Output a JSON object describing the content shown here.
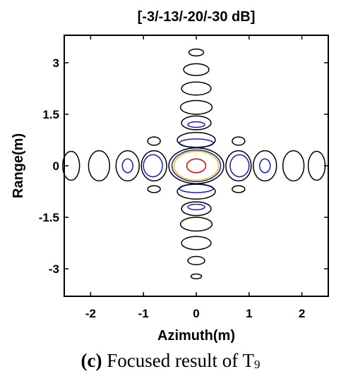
{
  "chart_data": {
    "type": "contour",
    "title": "[-3/-13/-20/-30 dB]",
    "xlabel": "Azimuth(m)",
    "ylabel": "Range(m)",
    "xlim": [
      -2.5,
      2.5
    ],
    "ylim": [
      -3.8,
      3.8
    ],
    "xticks": [
      -2,
      -1,
      0,
      1,
      2
    ],
    "xtick_labels": [
      "-2",
      "-1",
      "0",
      "1",
      "2"
    ],
    "yticks": [
      3,
      1.5,
      0,
      -1.5,
      -3
    ],
    "ytick_labels": [
      "3",
      "1.5",
      "0",
      "-1.5",
      "-3"
    ],
    "grid": false,
    "levels": [
      {
        "name": "-3 dB",
        "color": "#e00000"
      },
      {
        "name": "-13 dB",
        "color": "#e8c800"
      },
      {
        "name": "-20 dB",
        "color": "#1a1acc"
      },
      {
        "name": "-30 dB",
        "color": "#000000"
      }
    ],
    "contours": [
      {
        "level": "-3 dB",
        "cx": 0,
        "cy": 0,
        "rx": 0.18,
        "ry": 0.2
      },
      {
        "level": "-13 dB",
        "cx": 0,
        "cy": 0,
        "rx": 0.42,
        "ry": 0.42
      },
      {
        "level": "-20 dB",
        "cx": 0,
        "cy": 0,
        "rx": 0.46,
        "ry": 0.46
      },
      {
        "level": "-30 dB",
        "cx": 0,
        "cy": 0,
        "rx": 0.52,
        "ry": 0.52
      },
      {
        "level": "-20 dB",
        "cx": 0.82,
        "cy": 0,
        "rx": 0.18,
        "ry": 0.32
      },
      {
        "level": "-20 dB",
        "cx": -0.82,
        "cy": 0,
        "rx": 0.18,
        "ry": 0.32
      },
      {
        "level": "-20 dB",
        "cx": 1.3,
        "cy": 0,
        "rx": 0.1,
        "ry": 0.2
      },
      {
        "level": "-20 dB",
        "cx": -1.3,
        "cy": 0,
        "rx": 0.1,
        "ry": 0.2
      },
      {
        "level": "-20 dB",
        "cx": 0,
        "cy": 0.66,
        "rx": 0.32,
        "ry": 0.12
      },
      {
        "level": "-20 dB",
        "cx": 0,
        "cy": -0.66,
        "rx": 0.32,
        "ry": 0.12
      },
      {
        "level": "-20 dB",
        "cx": 0,
        "cy": 1.2,
        "rx": 0.16,
        "ry": 0.08
      },
      {
        "level": "-20 dB",
        "cx": 0,
        "cy": -1.2,
        "rx": 0.16,
        "ry": 0.08
      },
      {
        "level": "-30 dB",
        "cx": 0.8,
        "cy": 0,
        "rx": 0.24,
        "ry": 0.44
      },
      {
        "level": "-30 dB",
        "cx": -0.8,
        "cy": 0,
        "rx": 0.24,
        "ry": 0.44
      },
      {
        "level": "-30 dB",
        "cx": 1.3,
        "cy": 0,
        "rx": 0.22,
        "ry": 0.44
      },
      {
        "level": "-30 dB",
        "cx": -1.3,
        "cy": 0,
        "rx": 0.22,
        "ry": 0.44
      },
      {
        "level": "-30 dB",
        "cx": 1.84,
        "cy": 0,
        "rx": 0.2,
        "ry": 0.44
      },
      {
        "level": "-30 dB",
        "cx": -1.84,
        "cy": 0,
        "rx": 0.2,
        "ry": 0.44
      },
      {
        "level": "-30 dB",
        "cx": 2.28,
        "cy": 0,
        "rx": 0.16,
        "ry": 0.42
      },
      {
        "level": "-30 dB",
        "cx": -2.37,
        "cy": 0,
        "rx": 0.16,
        "ry": 0.42
      },
      {
        "level": "-30 dB",
        "cx": 0,
        "cy": 0.75,
        "rx": 0.36,
        "ry": 0.22
      },
      {
        "level": "-30 dB",
        "cx": 0,
        "cy": -0.75,
        "rx": 0.36,
        "ry": 0.22
      },
      {
        "level": "-30 dB",
        "cx": 0,
        "cy": 1.25,
        "rx": 0.28,
        "ry": 0.2
      },
      {
        "level": "-30 dB",
        "cx": 0,
        "cy": -1.25,
        "rx": 0.28,
        "ry": 0.2
      },
      {
        "level": "-30 dB",
        "cx": 0,
        "cy": 1.7,
        "rx": 0.3,
        "ry": 0.2
      },
      {
        "level": "-30 dB",
        "cx": 0,
        "cy": -1.7,
        "rx": 0.3,
        "ry": 0.2
      },
      {
        "level": "-30 dB",
        "cx": 0,
        "cy": 2.25,
        "rx": 0.28,
        "ry": 0.19
      },
      {
        "level": "-30 dB",
        "cx": 0,
        "cy": -2.25,
        "rx": 0.28,
        "ry": 0.19
      },
      {
        "level": "-30 dB",
        "cx": 0,
        "cy": 2.8,
        "rx": 0.24,
        "ry": 0.17
      },
      {
        "level": "-30 dB",
        "cx": 0,
        "cy": -2.76,
        "rx": 0.16,
        "ry": 0.12
      },
      {
        "level": "-30 dB",
        "cx": 0,
        "cy": 3.3,
        "rx": 0.14,
        "ry": 0.1
      },
      {
        "level": "-30 dB",
        "cx": 0,
        "cy": -3.22,
        "rx": 0.1,
        "ry": 0.07
      },
      {
        "level": "-30 dB",
        "cx": 0.8,
        "cy": 0.72,
        "rx": 0.12,
        "ry": 0.12
      },
      {
        "level": "-30 dB",
        "cx": -0.8,
        "cy": 0.72,
        "rx": 0.12,
        "ry": 0.12
      },
      {
        "level": "-30 dB",
        "cx": 0.8,
        "cy": -0.68,
        "rx": 0.12,
        "ry": 0.1
      },
      {
        "level": "-30 dB",
        "cx": -0.8,
        "cy": -0.68,
        "rx": 0.12,
        "ry": 0.1
      }
    ]
  },
  "caption": {
    "label": "(c)",
    "text": " Focused result of T",
    "subscript": "9"
  }
}
